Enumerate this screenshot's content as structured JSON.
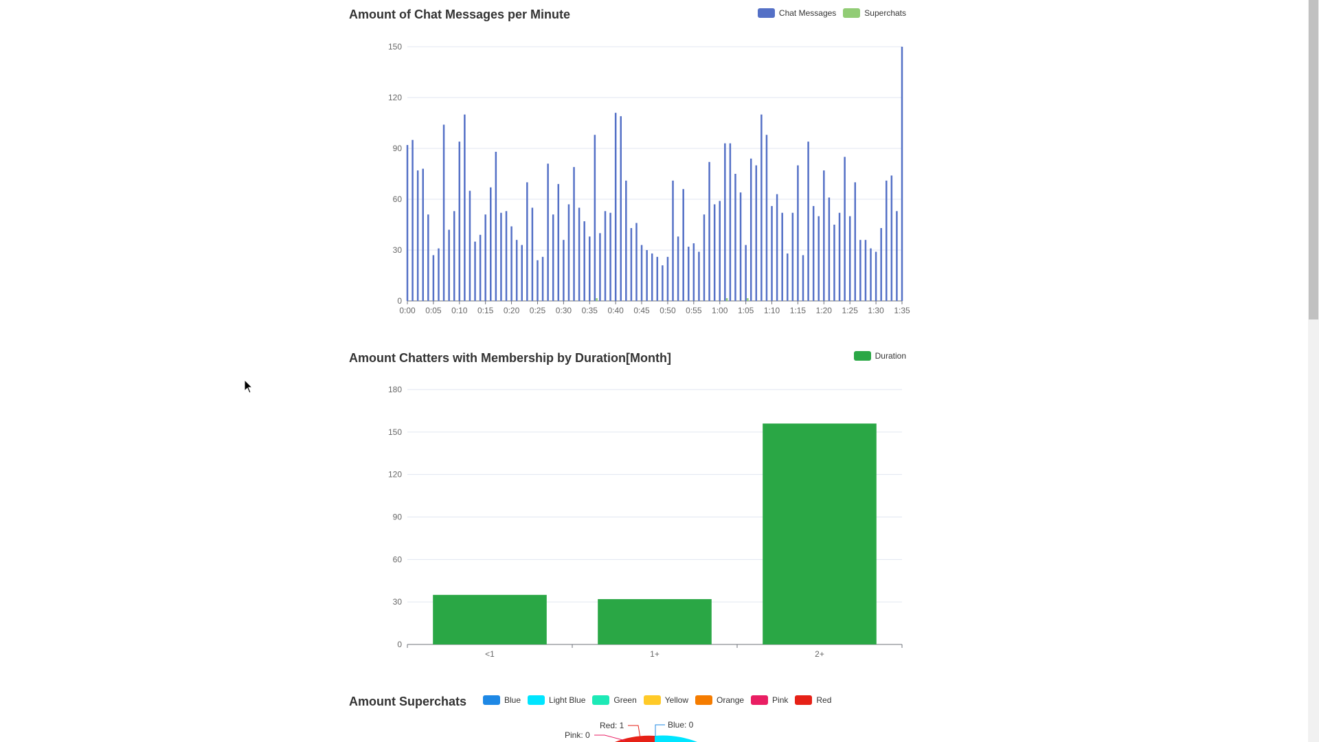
{
  "charts": {
    "messages": {
      "title": "Amount of Chat Messages per Minute",
      "legend": [
        {
          "label": "Chat Messages",
          "color": "#5470c6"
        },
        {
          "label": "Superchats",
          "color": "#91cc75"
        }
      ]
    },
    "membership": {
      "title": "Amount Chatters with Membership by Duration[Month]",
      "legend": [
        {
          "label": "Duration",
          "color": "#2aa745"
        }
      ]
    },
    "superchats": {
      "title": "Amount Superchats",
      "legend": [
        {
          "label": "Blue",
          "color": "#1e88e5"
        },
        {
          "label": "Light Blue",
          "color": "#00e5ff"
        },
        {
          "label": "Green",
          "color": "#1de9b6"
        },
        {
          "label": "Yellow",
          "color": "#ffca28"
        },
        {
          "label": "Orange",
          "color": "#f57c00"
        },
        {
          "label": "Pink",
          "color": "#e91e63"
        },
        {
          "label": "Red",
          "color": "#e62117"
        }
      ],
      "visible_labels": {
        "red": "Red: 1",
        "pink": "Pink: 0",
        "blue": "Blue: 0"
      }
    }
  },
  "chart_data": [
    {
      "type": "bar",
      "title": "Amount of Chat Messages per Minute",
      "x_tick_labels": [
        "0:00",
        "0:05",
        "0:10",
        "0:15",
        "0:20",
        "0:25",
        "0:30",
        "0:35",
        "0:40",
        "0:45",
        "0:50",
        "0:55",
        "1:00",
        "1:05",
        "1:10",
        "1:15",
        "1:20",
        "1:25",
        "1:30",
        "1:35"
      ],
      "y_tick_labels": [
        "0",
        "30",
        "60",
        "90",
        "120",
        "150"
      ],
      "ylim": [
        0,
        150
      ],
      "series": [
        {
          "name": "Chat Messages",
          "values": [
            92,
            95,
            77,
            78,
            51,
            27,
            31,
            104,
            42,
            53,
            94,
            110,
            65,
            35,
            39,
            51,
            67,
            88,
            52,
            53,
            44,
            36,
            33,
            70,
            55,
            24,
            26,
            81,
            51,
            69,
            36,
            57,
            79,
            55,
            47,
            38,
            98,
            40,
            53,
            52,
            111,
            109,
            71,
            43,
            46,
            33,
            30,
            28,
            26,
            21,
            26,
            71,
            38,
            66,
            32,
            34,
            29,
            51,
            82,
            57,
            59,
            93,
            93,
            75,
            64,
            33,
            84,
            80,
            110,
            98,
            56,
            63,
            52,
            28,
            52,
            80,
            27,
            94,
            56,
            50,
            77,
            61,
            45,
            52,
            85,
            50,
            70,
            36,
            36,
            31,
            29,
            43,
            71,
            74,
            53,
            150
          ]
        },
        {
          "name": "Superchats",
          "values": [
            0,
            0,
            0,
            0,
            0,
            0,
            0,
            0,
            0,
            0,
            0,
            0,
            0,
            0,
            0,
            0,
            0,
            0,
            0,
            0,
            0,
            0,
            0,
            0,
            0,
            0,
            0,
            0,
            0,
            0,
            0,
            0,
            0,
            0,
            0,
            0,
            1,
            0,
            0,
            0,
            0,
            0,
            0,
            0,
            0,
            0,
            0,
            0,
            0,
            0,
            0,
            0,
            0,
            0,
            0,
            0,
            0,
            0,
            0,
            0,
            0,
            1,
            0,
            0,
            0,
            1,
            0,
            0,
            0,
            0,
            0,
            0,
            0,
            0,
            0,
            0,
            0,
            0,
            0,
            0,
            0,
            0,
            0,
            0,
            0,
            0,
            0,
            0,
            0,
            0,
            0,
            0,
            0,
            0,
            0,
            0
          ]
        }
      ]
    },
    {
      "type": "bar",
      "title": "Amount Chatters with Membership by Duration[Month]",
      "categories": [
        "<1",
        "1+",
        "2+"
      ],
      "y_tick_labels": [
        "0",
        "30",
        "60",
        "90",
        "120",
        "150",
        "180"
      ],
      "ylim": [
        0,
        180
      ],
      "series": [
        {
          "name": "Duration",
          "values": [
            35,
            32,
            156
          ]
        }
      ]
    },
    {
      "type": "pie",
      "title": "Amount Superchats",
      "categories": [
        "Blue",
        "Light Blue",
        "Green",
        "Yellow",
        "Orange",
        "Pink",
        "Red"
      ],
      "values": [
        0,
        null,
        null,
        null,
        null,
        0,
        1
      ]
    }
  ]
}
